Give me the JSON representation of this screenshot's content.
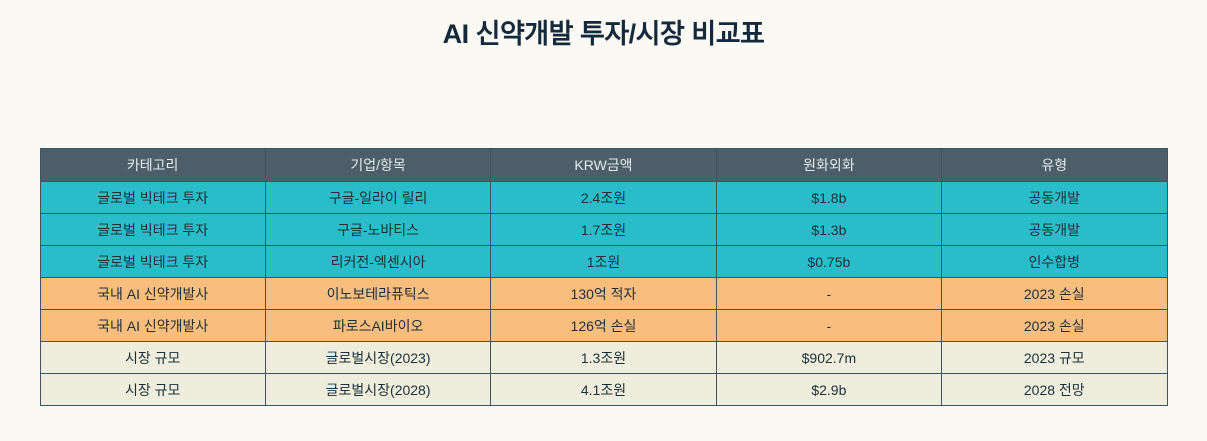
{
  "title": "AI 신약개발 투자/시장 비교표",
  "colors": {
    "background": "#fbf9f3",
    "header_bg": "#4e5e68",
    "header_text": "#e3ebee",
    "cyan_row": "#29bdc9",
    "orange_row": "#f9bd7e",
    "beige_row": "#efeede",
    "border": "#43535b",
    "title_text": "#14293c",
    "cell_text": "#1d2f37"
  },
  "chart_data": {
    "type": "table",
    "title": "AI 신약개발 투자/시장 비교표",
    "columns": [
      "카테고리",
      "기업/항목",
      "KRW금액",
      "원화외화",
      "유형"
    ],
    "rows": [
      {
        "variant": "cyan",
        "cells": [
          "글로벌 빅테크 투자",
          "구글-일라이 릴리",
          "2.4조원",
          "$1.8b",
          "공동개발"
        ]
      },
      {
        "variant": "cyan",
        "cells": [
          "글로벌 빅테크 투자",
          "구글-노바티스",
          "1.7조원",
          "$1.3b",
          "공동개발"
        ]
      },
      {
        "variant": "cyan",
        "cells": [
          "글로벌 빅테크 투자",
          "리커전-엑센시아",
          "1조원",
          "$0.75b",
          "인수합병"
        ]
      },
      {
        "variant": "orange",
        "cells": [
          "국내 AI 신약개발사",
          "이노보테라퓨틱스",
          "130억 적자",
          "-",
          "2023 손실"
        ]
      },
      {
        "variant": "orange",
        "cells": [
          "국내 AI 신약개발사",
          "파로스AI바이오",
          "126억 손실",
          "-",
          "2023 손실"
        ]
      },
      {
        "variant": "beige",
        "cells": [
          "시장 규모",
          "글로벌시장(2023)",
          "1.3조원",
          "$902.7m",
          "2023 규모"
        ]
      },
      {
        "variant": "beige",
        "cells": [
          "시장 규모",
          "글로벌시장(2028)",
          "4.1조원",
          "$2.9b",
          "2028 전망"
        ]
      }
    ],
    "legend_position": "none",
    "grid": true
  }
}
